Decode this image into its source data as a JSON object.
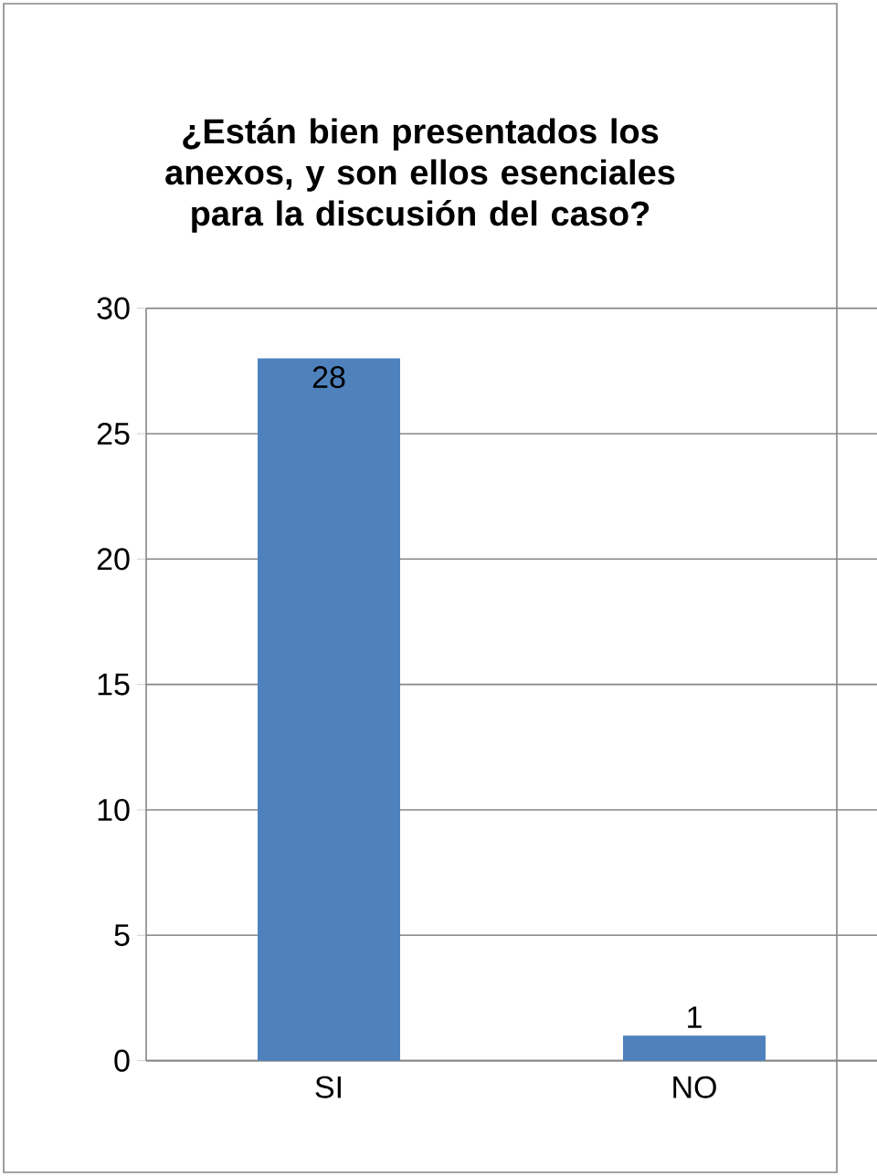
{
  "chart_data": {
    "type": "bar",
    "title": "¿Están bien presentados los anexos, y son ellos esenciales para la discusión del caso?",
    "categories": [
      "SI",
      "NO"
    ],
    "values": [
      28,
      1
    ],
    "color": "#4f81bd",
    "ylim": [
      0,
      30
    ],
    "yticks": [
      0,
      5,
      10,
      15,
      20,
      25,
      30
    ],
    "grid": "y",
    "data_labels": true
  }
}
